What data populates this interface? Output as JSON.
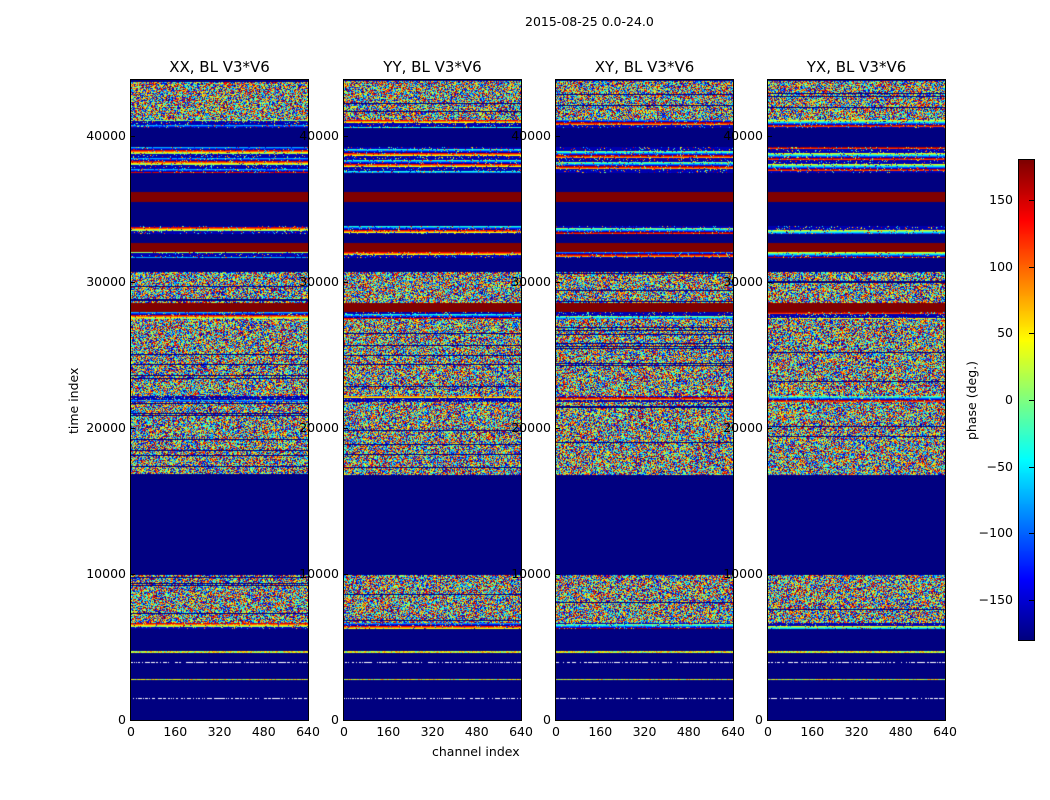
{
  "chart_data": {
    "type": "heatmap",
    "title": "2015-08-25 0.0-24.0",
    "xlabel": "channel index",
    "ylabel": "time index",
    "xlim": [
      0,
      640
    ],
    "ylim": [
      0,
      43836
    ],
    "xticks": [
      "0",
      "160",
      "320",
      "480",
      "640"
    ],
    "yticks": [
      0,
      10000,
      20000,
      30000,
      40000
    ],
    "ytick_labels": [
      "0",
      "10000",
      "20000",
      "30000",
      "40000"
    ],
    "panels": [
      {
        "title": "XX, BL V3*V6"
      },
      {
        "title": "YY, BL V3*V6"
      },
      {
        "title": "XY, BL V3*V6"
      },
      {
        "title": "YX, BL V3*V6"
      }
    ],
    "colorbar": {
      "label": "phase (deg.)",
      "range": [
        -180,
        180
      ],
      "ticks": [
        -150,
        -100,
        -50,
        0,
        50,
        100,
        150
      ],
      "tick_labels": [
        "−150",
        "−100",
        "−50",
        "0",
        "50",
        "100",
        "150"
      ],
      "colormap": "jet"
    },
    "segments": [
      [
        0,
        6300,
        "flag"
      ],
      [
        6300,
        6700,
        "line"
      ],
      [
        6700,
        10000,
        "noise"
      ],
      [
        10000,
        16800,
        "flag"
      ],
      [
        16800,
        21800,
        "noise"
      ],
      [
        21800,
        22200,
        "line"
      ],
      [
        22200,
        27500,
        "noise"
      ],
      [
        27500,
        28000,
        "line"
      ],
      [
        28000,
        28600,
        "red"
      ],
      [
        28600,
        30700,
        "noise"
      ],
      [
        30700,
        31700,
        "flag"
      ],
      [
        31700,
        32100,
        "line"
      ],
      [
        32100,
        32700,
        "red"
      ],
      [
        32700,
        33300,
        "flag"
      ],
      [
        33300,
        33900,
        "line"
      ],
      [
        33900,
        35500,
        "flag"
      ],
      [
        35500,
        36200,
        "red"
      ],
      [
        36200,
        37500,
        "flag"
      ],
      [
        37500,
        39300,
        "line"
      ],
      [
        39300,
        40600,
        "flag"
      ],
      [
        40600,
        41100,
        "line"
      ],
      [
        41100,
        43836,
        "noise"
      ]
    ]
  }
}
